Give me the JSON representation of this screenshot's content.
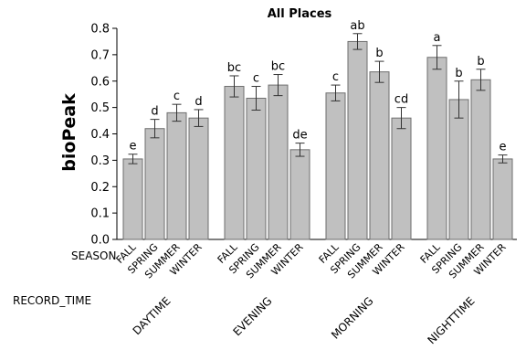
{
  "chart_data": {
    "type": "bar",
    "title": "All Places",
    "ylabel": "bioPeak",
    "ylim": [
      0.0,
      0.8
    ],
    "yticks": [
      "0.0",
      "0.1",
      "0.2",
      "0.3",
      "0.4",
      "0.5",
      "0.6",
      "0.7",
      "0.8"
    ],
    "grid": false,
    "row_labels": {
      "season": "SEASON",
      "record_time": "RECORD_TIME"
    },
    "groups": [
      {
        "name": "DAYTIME",
        "bars": [
          {
            "season": "FALL",
            "value": 0.305,
            "err": 0.018,
            "letter": "e"
          },
          {
            "season": "SPRING",
            "value": 0.42,
            "err": 0.035,
            "letter": "d"
          },
          {
            "season": "SUMMER",
            "value": 0.48,
            "err": 0.032,
            "letter": "c"
          },
          {
            "season": "WINTER",
            "value": 0.46,
            "err": 0.032,
            "letter": "d"
          }
        ]
      },
      {
        "name": "EVENING",
        "bars": [
          {
            "season": "FALL",
            "value": 0.58,
            "err": 0.04,
            "letter": "bc"
          },
          {
            "season": "SPRING",
            "value": 0.535,
            "err": 0.045,
            "letter": "c"
          },
          {
            "season": "SUMMER",
            "value": 0.585,
            "err": 0.04,
            "letter": "bc"
          },
          {
            "season": "WINTER",
            "value": 0.34,
            "err": 0.025,
            "letter": "de"
          }
        ]
      },
      {
        "name": "MORNING",
        "bars": [
          {
            "season": "FALL",
            "value": 0.555,
            "err": 0.03,
            "letter": "c"
          },
          {
            "season": "SPRING",
            "value": 0.75,
            "err": 0.03,
            "letter": "ab"
          },
          {
            "season": "SUMMER",
            "value": 0.635,
            "err": 0.04,
            "letter": "b"
          },
          {
            "season": "WINTER",
            "value": 0.46,
            "err": 0.04,
            "letter": "cd"
          }
        ]
      },
      {
        "name": "NIGHTTIME",
        "bars": [
          {
            "season": "FALL",
            "value": 0.69,
            "err": 0.045,
            "letter": "a"
          },
          {
            "season": "SPRING",
            "value": 0.53,
            "err": 0.07,
            "letter": "b"
          },
          {
            "season": "SUMMER",
            "value": 0.605,
            "err": 0.04,
            "letter": "b"
          },
          {
            "season": "WINTER",
            "value": 0.305,
            "err": 0.015,
            "letter": "e"
          }
        ]
      }
    ],
    "colors": {
      "bar_fill": "#c0c0c0",
      "bar_stroke": "#6e6e6e",
      "axis": "#000000"
    }
  }
}
